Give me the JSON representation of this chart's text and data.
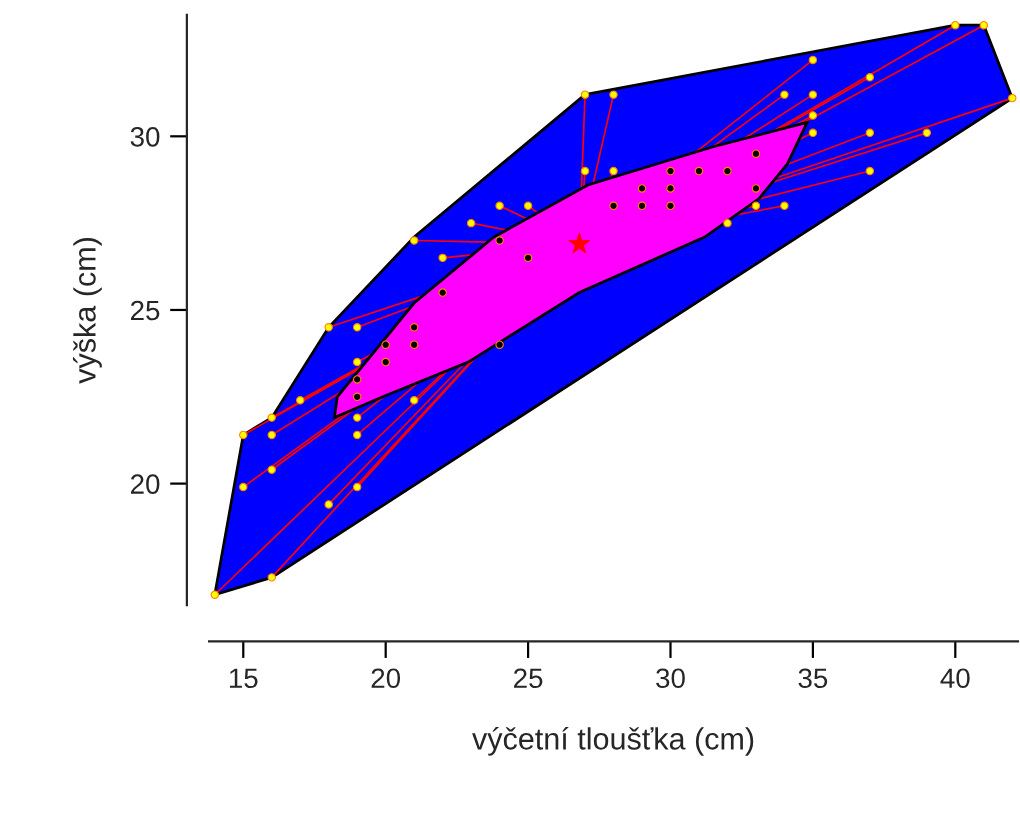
{
  "chart_data": {
    "type": "scatter",
    "xlabel": "výčetní tloušťka (cm)",
    "ylabel": "výška (cm)",
    "xlim": [
      13.8,
      42.2
    ],
    "ylim": [
      16.5,
      33.5
    ],
    "xticks": [
      15,
      20,
      25,
      30,
      35,
      40
    ],
    "yticks": [
      20,
      25,
      30
    ],
    "grid": false,
    "legend": false,
    "series": [
      {
        "type": "area",
        "color": "#0000ff",
        "x": [
          14,
          16,
          42,
          41,
          40,
          27,
          21,
          18,
          16,
          15
        ],
        "values": [
          16.8,
          17.3,
          31.1,
          33.2,
          33.2,
          31.2,
          27.1,
          24.5,
          21.9,
          21.4
        ]
      },
      {
        "type": "area",
        "color": "#ff00ff",
        "x": [
          18.2,
          18.3,
          21,
          23.8,
          27.1,
          31.5,
          34.8,
          34.1,
          33.1,
          31.2,
          26.8,
          22.9,
          19.9
        ],
        "values": [
          21.9,
          22.5,
          25.2,
          27.1,
          28.6,
          29.7,
          30.4,
          29.2,
          28.2,
          27.1,
          25.5,
          23.5,
          22.5
        ]
      },
      {
        "type": "scatter",
        "color": "#ffff00",
        "marker": "circle",
        "x": [
          14,
          16,
          15,
          16,
          16,
          16,
          15,
          17,
          18,
          19,
          19,
          19,
          19,
          18,
          19,
          21,
          21,
          22,
          23,
          24,
          25,
          27,
          28,
          27,
          28,
          32,
          33,
          34,
          35,
          37,
          37,
          39,
          35,
          35,
          34,
          35,
          37,
          40,
          41,
          42
        ],
        "values": [
          16.8,
          17.3,
          19.9,
          20.4,
          21.4,
          21.9,
          21.4,
          22.4,
          19.4,
          19.9,
          21.4,
          21.9,
          23.5,
          24.5,
          24.5,
          22.4,
          27,
          26.5,
          27.5,
          28,
          28,
          31.2,
          31.2,
          29,
          29,
          27.5,
          28,
          28,
          30.1,
          30.1,
          29,
          30.1,
          30.6,
          31.2,
          31.2,
          32.2,
          31.7,
          33.2,
          33.2,
          31.1
        ]
      },
      {
        "type": "scatter",
        "color": "#000000",
        "marker": "circle",
        "x": [
          19,
          19,
          20,
          20,
          21,
          21,
          22,
          24,
          24,
          25,
          28,
          29,
          30,
          29,
          30,
          30,
          31,
          32,
          33,
          33
        ],
        "values": [
          23,
          22.5,
          23.5,
          24,
          24,
          24.5,
          25.5,
          24,
          27,
          26.5,
          28,
          28,
          28,
          28.5,
          28.5,
          29,
          29,
          29,
          29.5,
          28.5
        ]
      },
      {
        "type": "scatter",
        "color": "#ff0000",
        "marker": "star",
        "x": [
          26.8
        ],
        "values": [
          26.9
        ]
      }
    ]
  }
}
